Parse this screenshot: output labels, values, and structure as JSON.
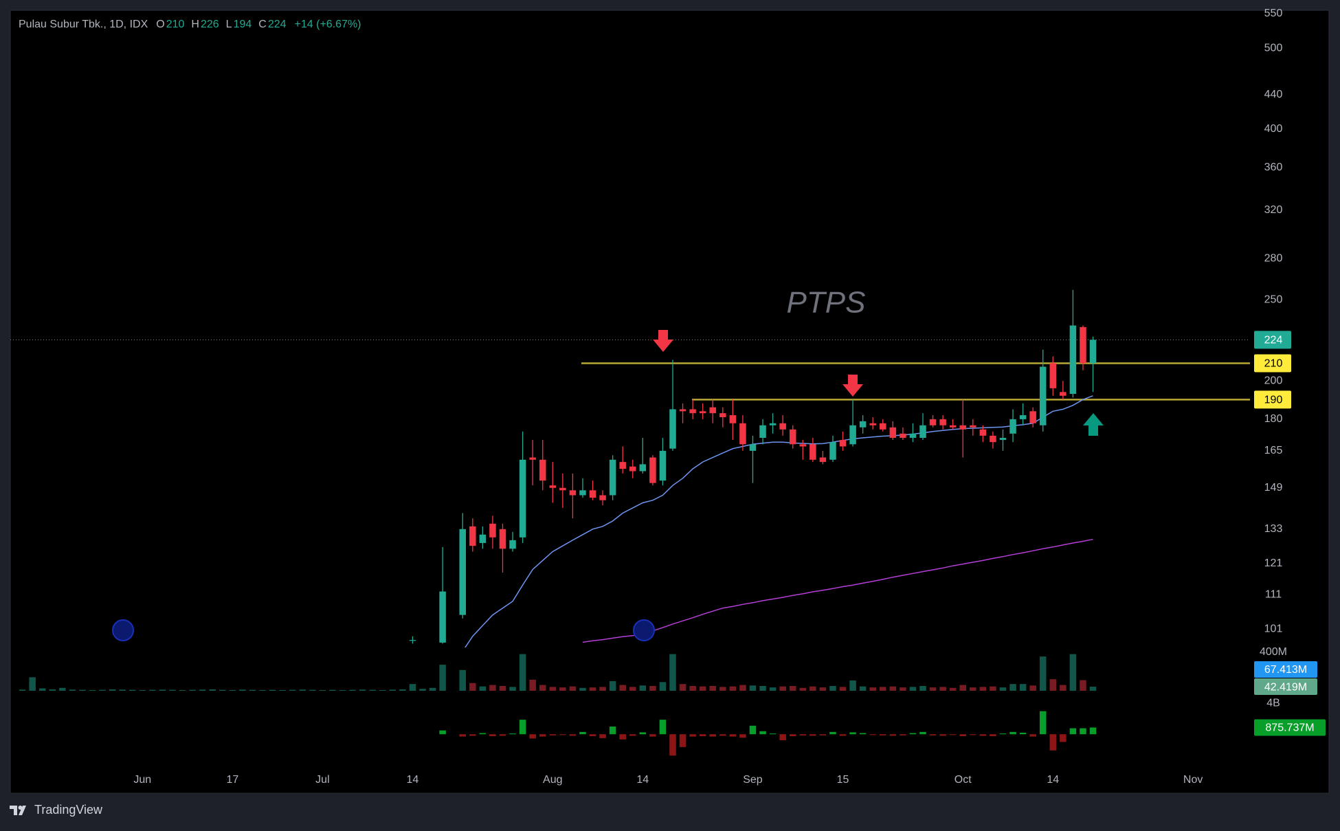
{
  "chart_data": {
    "type": "candlestick",
    "title": "Pulau Subur Tbk., 1D, IDX",
    "ohlc": [
      {
        "label": "O",
        "value": 210
      },
      {
        "label": "H",
        "value": 226
      },
      {
        "label": "L",
        "value": 194
      },
      {
        "label": "C",
        "value": 224
      }
    ],
    "change": "+14 (+6.67%)",
    "watermark": "PTPS",
    "log_scale": true,
    "grid": false,
    "up_color": "#22ab94",
    "down_color": "#f23645",
    "categories": [
      null,
      null,
      null,
      null,
      null,
      null,
      null,
      null,
      null,
      null,
      null,
      null,
      "Jun",
      null,
      null,
      null,
      null,
      null,
      null,
      null,
      null,
      "17",
      null,
      null,
      null,
      null,
      null,
      null,
      null,
      null,
      "Jul",
      null,
      null,
      null,
      null,
      null,
      null,
      null,
      null,
      "14",
      null,
      null,
      null,
      null,
      null,
      null,
      null,
      null,
      null,
      null,
      null,
      null,
      null,
      "Aug",
      null,
      null,
      null,
      null,
      null,
      null,
      null,
      null,
      "14",
      null,
      null,
      null,
      null,
      null,
      null,
      null,
      null,
      null,
      null,
      "Sep",
      null,
      null,
      null,
      null,
      null,
      null,
      null,
      null,
      "15",
      null,
      null,
      null,
      null,
      null,
      null,
      null,
      null,
      null,
      null,
      null,
      "Oct",
      null,
      null,
      null,
      null,
      null,
      null,
      null,
      null,
      "14",
      null,
      null,
      null,
      null,
      null,
      null,
      null,
      null,
      null,
      null,
      null,
      null,
      null,
      "Nov",
      null,
      null,
      null,
      null,
      null
    ],
    "open": [
      null,
      null,
      null,
      null,
      null,
      null,
      null,
      null,
      null,
      null,
      null,
      null,
      null,
      null,
      null,
      null,
      null,
      null,
      null,
      null,
      null,
      null,
      null,
      null,
      null,
      null,
      null,
      null,
      null,
      null,
      null,
      null,
      null,
      null,
      null,
      null,
      null,
      null,
      null,
      98,
      null,
      null,
      97.3,
      null,
      105,
      134,
      128,
      135,
      133,
      126,
      130,
      162,
      161,
      150,
      149,
      148,
      146,
      148,
      146,
      146,
      160,
      158,
      156,
      162,
      152,
      166,
      185,
      185,
      184,
      186,
      183,
      182,
      178,
      165,
      171,
      177,
      178,
      175,
      168,
      168,
      162,
      161,
      170,
      168,
      176,
      178,
      178,
      176,
      173,
      171,
      171,
      180,
      180,
      177,
      177,
      177,
      175,
      172,
      170,
      173,
      180,
      184,
      177,
      210,
      194,
      193,
      232,
      210,
      null,
      null,
      null,
      null,
      null,
      null,
      null,
      null,
      null,
      null,
      null,
      null,
      null,
      null,
      null
    ],
    "high": [
      null,
      null,
      null,
      null,
      null,
      null,
      null,
      null,
      null,
      null,
      null,
      null,
      null,
      null,
      null,
      null,
      null,
      null,
      null,
      null,
      null,
      null,
      null,
      null,
      null,
      null,
      null,
      null,
      null,
      null,
      null,
      null,
      null,
      null,
      null,
      null,
      null,
      null,
      null,
      99,
      null,
      null,
      126.6,
      null,
      139,
      137,
      134,
      138,
      135,
      132,
      174,
      170,
      170,
      160,
      155,
      155,
      153,
      152,
      148,
      163,
      167,
      161,
      171,
      163,
      171,
      212,
      188,
      190,
      188,
      190,
      186,
      190,
      182,
      172,
      180,
      183,
      182,
      177,
      170,
      171,
      165,
      172,
      174,
      190,
      182,
      181,
      180,
      179,
      176,
      178,
      183,
      182,
      182,
      180,
      190,
      180,
      177,
      174,
      175,
      185,
      188,
      186,
      218,
      214,
      200,
      257,
      233,
      226,
      null,
      null,
      null,
      null,
      null,
      null,
      null,
      null,
      null,
      null,
      null,
      null,
      null,
      null,
      null
    ],
    "low": [
      null,
      null,
      null,
      null,
      null,
      null,
      null,
      null,
      null,
      null,
      null,
      null,
      null,
      null,
      null,
      null,
      null,
      null,
      null,
      null,
      null,
      null,
      null,
      null,
      null,
      null,
      null,
      null,
      null,
      null,
      null,
      null,
      null,
      null,
      null,
      null,
      null,
      null,
      null,
      97,
      null,
      null,
      97,
      null,
      104,
      125,
      126,
      126,
      118,
      125,
      128,
      150,
      148,
      143,
      141,
      137,
      145,
      144,
      142,
      144,
      155,
      153,
      155,
      150,
      150,
      165,
      178,
      180,
      180,
      178,
      176,
      170,
      165,
      151,
      168,
      173,
      172,
      166,
      161,
      160,
      159,
      160,
      165,
      167,
      173,
      175,
      174,
      170,
      170,
      169,
      170,
      176,
      175,
      175,
      162,
      172,
      169,
      166,
      165,
      169,
      177,
      176,
      174,
      192,
      190,
      191,
      206,
      194,
      null,
      null,
      null,
      null,
      null,
      null,
      null,
      null,
      null,
      null,
      null,
      null,
      null,
      null,
      null
    ],
    "close": [
      null,
      null,
      null,
      null,
      null,
      null,
      null,
      null,
      null,
      null,
      null,
      null,
      null,
      null,
      null,
      null,
      null,
      null,
      null,
      null,
      null,
      null,
      null,
      null,
      null,
      null,
      null,
      null,
      null,
      null,
      null,
      null,
      null,
      null,
      null,
      null,
      null,
      null,
      null,
      98,
      null,
      null,
      112,
      null,
      133,
      127,
      131,
      130,
      126,
      129,
      161,
      161,
      152,
      149,
      148,
      146,
      148,
      145,
      144,
      161,
      157,
      156,
      159,
      151,
      165,
      185,
      184,
      183,
      183,
      183,
      181,
      178,
      168,
      168,
      177,
      178,
      175,
      168,
      167,
      161,
      160,
      169,
      167,
      177,
      179,
      177,
      175,
      171,
      171,
      173,
      177,
      177,
      177,
      176,
      175,
      176,
      172,
      169,
      171,
      180,
      182,
      178,
      208,
      196,
      192,
      233,
      210,
      224,
      null,
      null,
      null,
      null,
      null,
      null,
      null,
      null,
      null,
      null,
      null,
      null,
      null,
      null,
      null
    ],
    "ylim": [
      96,
      555
    ],
    "yticks": [
      101,
      111,
      121,
      133,
      149,
      165,
      180,
      200,
      250,
      280,
      320,
      360,
      400,
      440,
      500,
      550
    ],
    "moving_averages": [
      {
        "color": "#6f95f2",
        "values": [
          null,
          null,
          null,
          null,
          null,
          null,
          null,
          null,
          null,
          null,
          null,
          null,
          null,
          null,
          null,
          null,
          null,
          null,
          null,
          null,
          null,
          null,
          null,
          null,
          null,
          null,
          null,
          null,
          null,
          null,
          null,
          null,
          null,
          null,
          null,
          null,
          null,
          null,
          null,
          null,
          null,
          null,
          null,
          null,
          95,
          99,
          102,
          105,
          107,
          109,
          114,
          119,
          122,
          125,
          127,
          129,
          131,
          133,
          134,
          136,
          139,
          141,
          143,
          144,
          146,
          150,
          153,
          157,
          160,
          162,
          164,
          166,
          167,
          168,
          168.5,
          169,
          169,
          168.6,
          168.4,
          168.2,
          168.3,
          169,
          169.8,
          170.5,
          171,
          171.4,
          171.8,
          172,
          172.3,
          172.8,
          173.3,
          174,
          174.5,
          175,
          175.4,
          175.6,
          175.8,
          176,
          176.2,
          176.8,
          177.3,
          178,
          181,
          184,
          185,
          187,
          190,
          192,
          null,
          null,
          null,
          null,
          null,
          null,
          null,
          null,
          null,
          null,
          null,
          null,
          null,
          null,
          null
        ]
      },
      {
        "color": "#b53fd8",
        "values": [
          null,
          null,
          null,
          null,
          null,
          null,
          null,
          null,
          null,
          null,
          null,
          null,
          null,
          null,
          null,
          null,
          null,
          null,
          null,
          null,
          null,
          null,
          null,
          null,
          null,
          null,
          null,
          null,
          null,
          null,
          null,
          null,
          null,
          null,
          null,
          null,
          null,
          null,
          null,
          null,
          null,
          null,
          null,
          null,
          null,
          null,
          null,
          null,
          null,
          null,
          null,
          null,
          null,
          null,
          null,
          null,
          97.4,
          97.8,
          98.1,
          98.5,
          98.9,
          99.2,
          99.6,
          100.5,
          101.4,
          102.4,
          103.3,
          104.2,
          105.2,
          106.1,
          107,
          107.5,
          108.1,
          108.6,
          109.2,
          109.7,
          110.2,
          110.8,
          111.3,
          111.9,
          112.4,
          112.9,
          113.5,
          114,
          114.6,
          115.2,
          115.8,
          116.5,
          117.1,
          117.7,
          118.3,
          118.9,
          119.5,
          120.2,
          120.8,
          121.4,
          122,
          122.7,
          123.3,
          124,
          124.6,
          125.3,
          126,
          126.6,
          127.3,
          128,
          128.6,
          129.3,
          null,
          null,
          null,
          null,
          null,
          null,
          null,
          null,
          null,
          null,
          null,
          null,
          null,
          null,
          null
        ]
      }
    ],
    "levels": [
      210,
      190
    ],
    "level_color": "#b8a836",
    "level_label_color": "#ffeb3b",
    "volume": {
      "values": [
        12,
        140,
        25,
        15,
        30,
        12,
        10,
        8,
        10,
        15,
        12,
        10,
        8,
        10,
        12,
        10,
        8,
        10,
        12,
        15,
        10,
        8,
        12,
        10,
        8,
        10,
        8,
        10,
        12,
        10,
        8,
        10,
        8,
        10,
        12,
        10,
        8,
        12,
        15,
        70,
        20,
        30,
        270,
        null,
        215,
        80,
        45,
        60,
        50,
        40,
        380,
        115,
        60,
        40,
        35,
        45,
        30,
        35,
        40,
        100,
        60,
        40,
        55,
        50,
        90,
        380,
        70,
        50,
        45,
        50,
        40,
        45,
        60,
        55,
        50,
        35,
        45,
        50,
        30,
        45,
        35,
        50,
        40,
        107,
        45,
        35,
        40,
        45,
        35,
        40,
        50,
        35,
        40,
        30,
        60,
        35,
        40,
        45,
        35,
        70,
        70,
        55,
        355,
        120,
        60,
        380,
        110,
        42.419,
        null,
        null,
        null,
        null,
        null,
        null,
        null,
        null,
        null,
        null,
        null,
        null,
        null,
        null,
        null
      ],
      "last_value_label": "42.419M",
      "ylim": [
        0,
        420
      ],
      "yticks": [
        {
          "value": 400,
          "label": "400M"
        }
      ],
      "ma": {
        "value": 67.413,
        "label": "67.413M",
        "color": "#2196f3"
      }
    },
    "flow": {
      "values": [
        null,
        null,
        null,
        null,
        null,
        null,
        null,
        null,
        null,
        null,
        null,
        null,
        null,
        null,
        null,
        null,
        null,
        null,
        null,
        null,
        null,
        null,
        null,
        null,
        null,
        null,
        null,
        null,
        null,
        null,
        null,
        null,
        null,
        null,
        null,
        null,
        null,
        null,
        null,
        null,
        null,
        null,
        500,
        null,
        -300,
        -200,
        150,
        -250,
        -200,
        100,
        1890,
        -555,
        -300,
        -150,
        -100,
        -200,
        300,
        -250,
        -500,
        1000,
        -670,
        -200,
        250,
        -300,
        1890,
        -2775,
        -1665,
        -300,
        -250,
        -300,
        -200,
        -300,
        -450,
        1110,
        400,
        100,
        -780,
        -250,
        -150,
        -200,
        -150,
        300,
        -200,
        250,
        150,
        -100,
        -150,
        -200,
        -150,
        150,
        300,
        -150,
        -200,
        -100,
        -250,
        -100,
        -200,
        -250,
        100,
        300,
        200,
        -300,
        3000,
        -2100,
        -1000,
        780,
        780,
        875.737,
        null,
        null,
        null,
        null,
        null,
        null,
        null,
        null,
        null,
        null,
        null,
        null,
        null,
        null,
        null
      ],
      "last_value_label": "875.737M",
      "ylim": [
        -3000,
        4500
      ],
      "yticks": [
        {
          "value": 4000,
          "label": "4B"
        }
      ],
      "up_color": "#089e2a",
      "down_color": "#8e1515"
    }
  },
  "footer": {
    "brand": "TradingView"
  }
}
